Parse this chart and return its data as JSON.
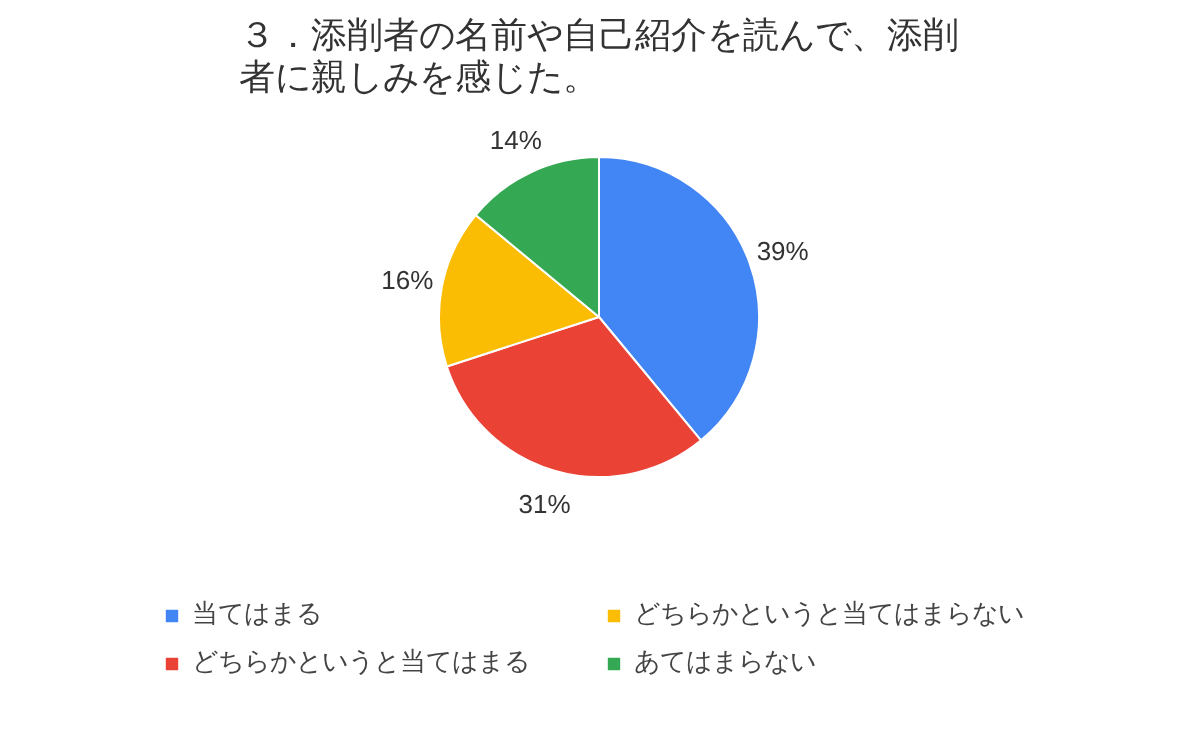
{
  "chart_data": {
    "type": "pie",
    "title": "３．添削者の名前や自己紹介を読んで、添削者に親しみを感じた。",
    "categories": [
      "当てはまる",
      "どちらかというと当てはまる",
      "どちらかというと当てはまらない",
      "あてはまらない"
    ],
    "values": [
      39,
      31,
      16,
      14
    ],
    "colors": [
      "#4285f4",
      "#ea4335",
      "#fbbc04",
      "#34a853"
    ],
    "value_labels": [
      "39%",
      "31%",
      "16%",
      "14%"
    ],
    "legend": "bottom"
  }
}
